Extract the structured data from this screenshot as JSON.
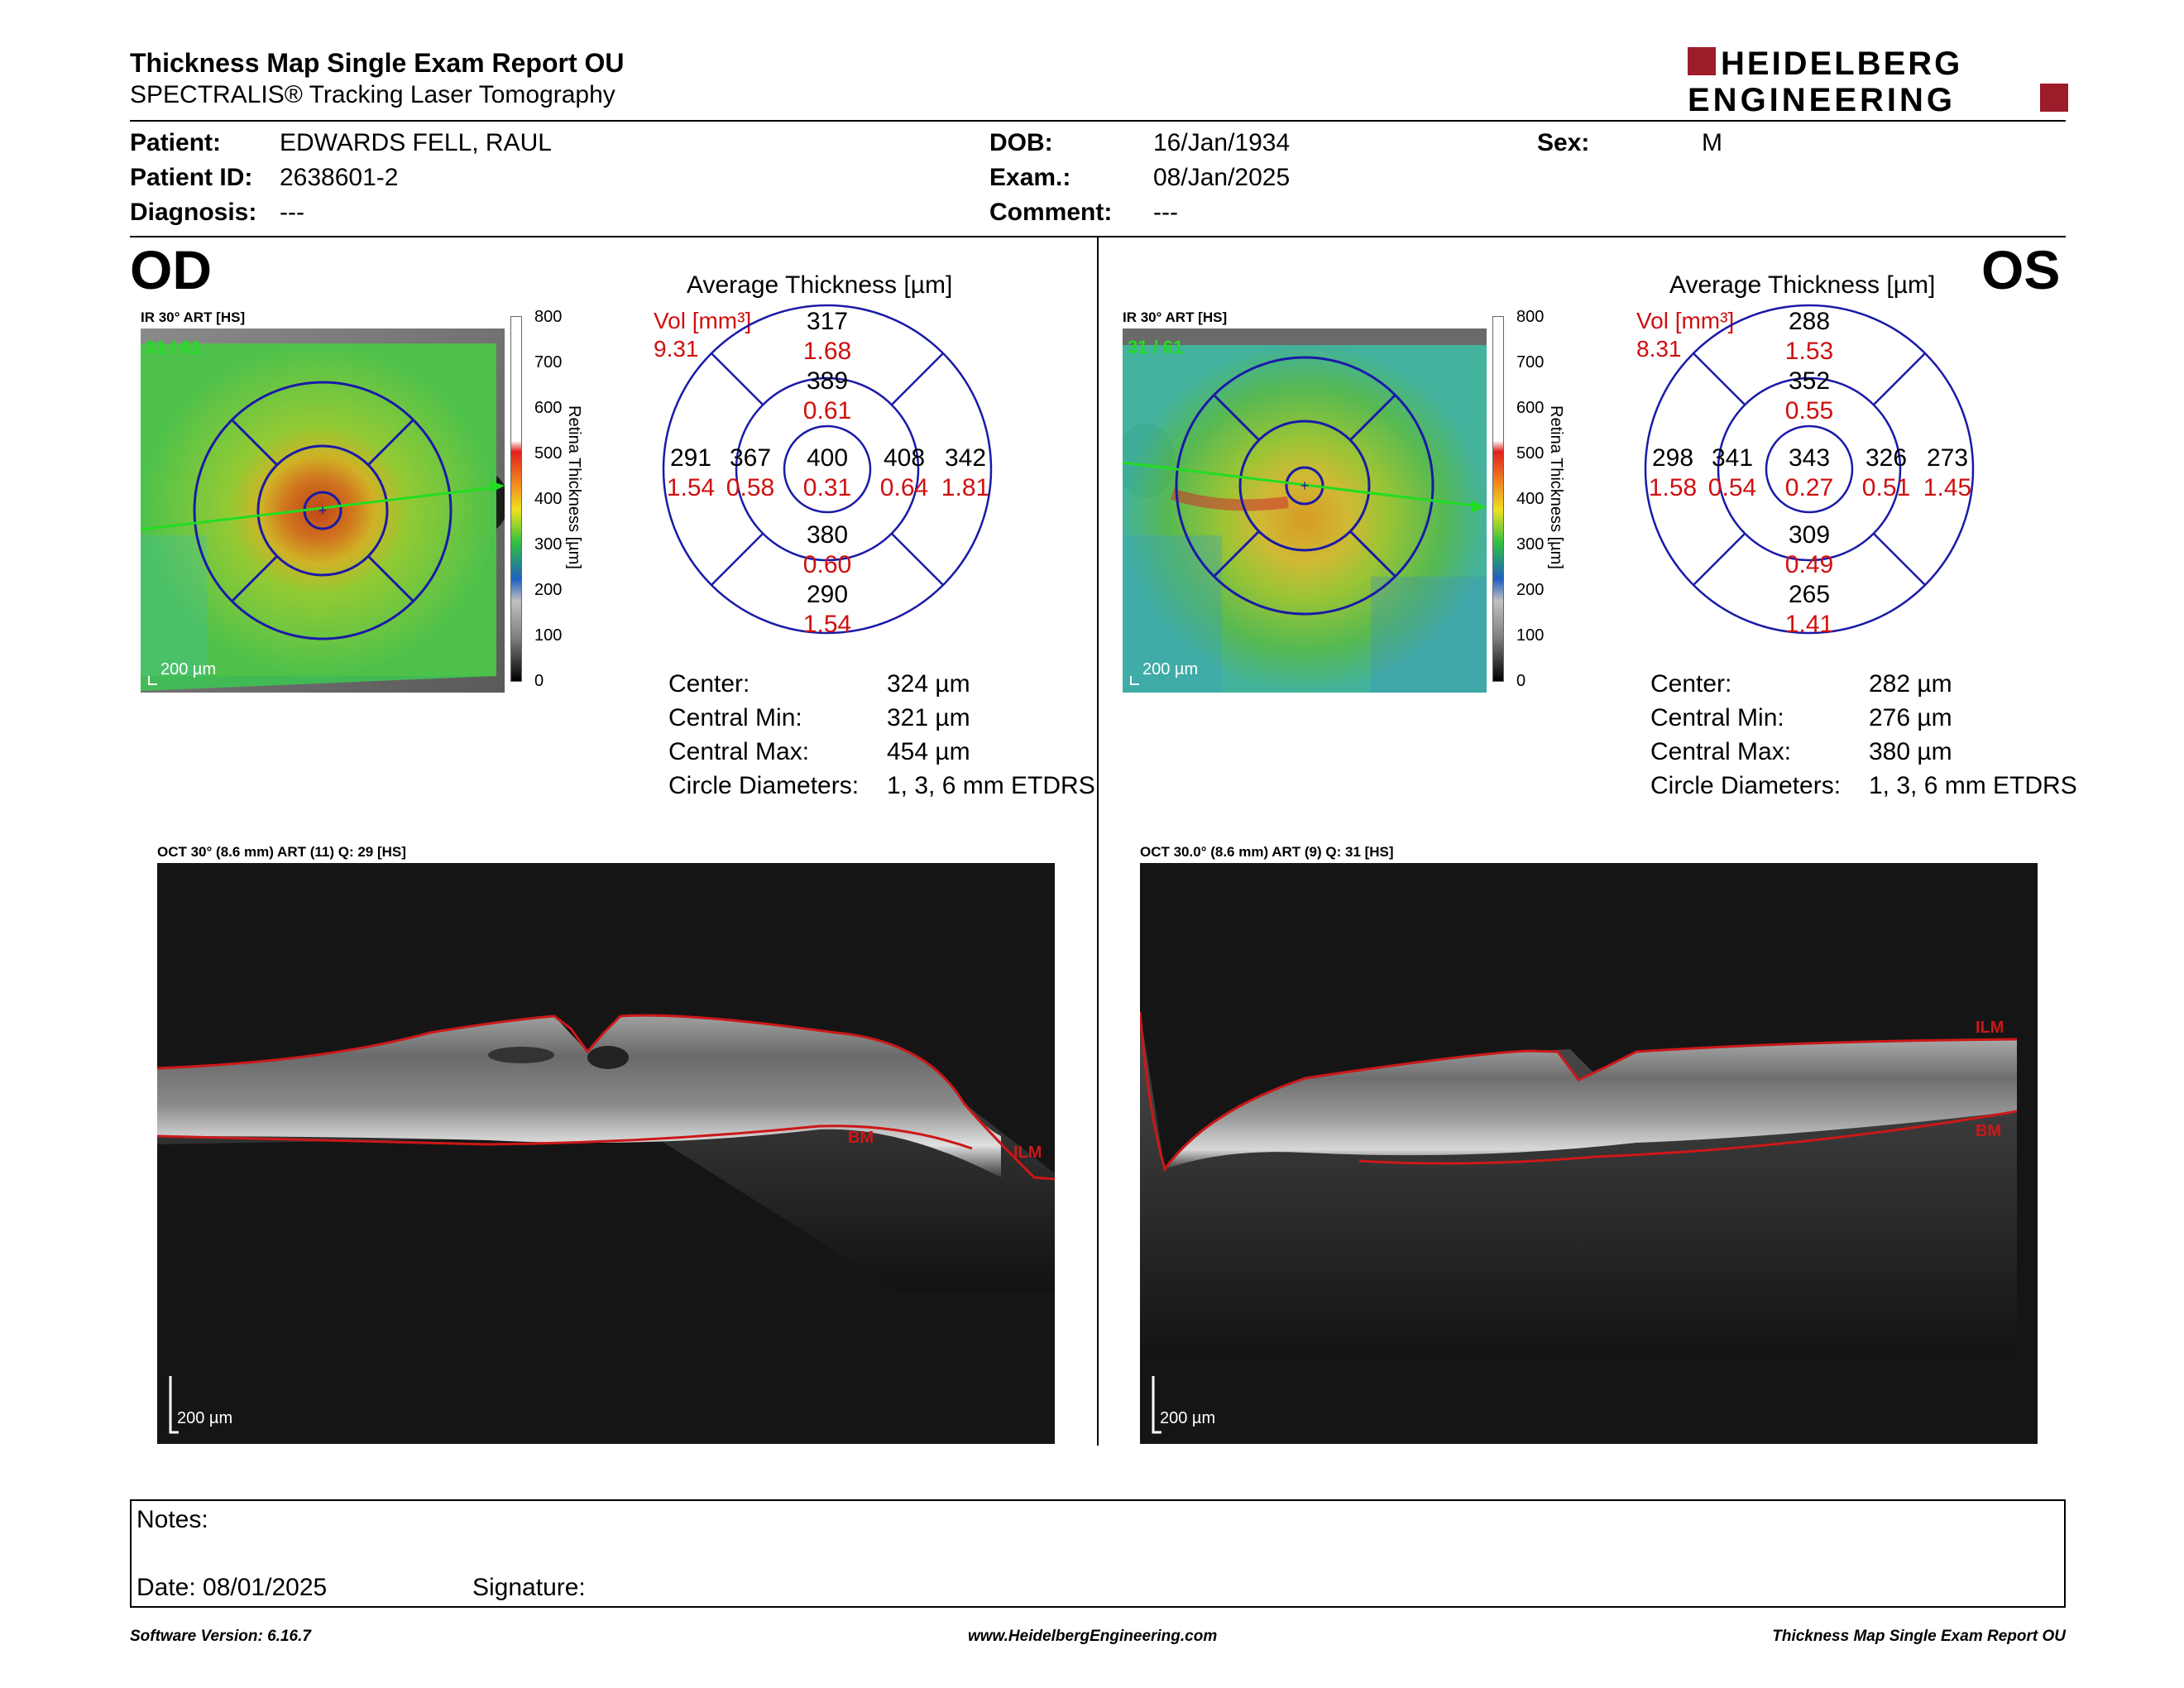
{
  "header": {
    "title": "Thickness Map Single Exam Report OU",
    "subtitle": "SPECTRALIS® Tracking Laser Tomography",
    "logo_line1": "HEIDELBERG",
    "logo_line2": "ENGINEERING",
    "brand_color": "#9c1c2a"
  },
  "patient": {
    "patient_label": "Patient:",
    "patient_value": "EDWARDS FELL, RAUL",
    "id_label": "Patient ID:",
    "id_value": "2638601-2",
    "diagnosis_label": "Diagnosis:",
    "diagnosis_value": "---",
    "dob_label": "DOB:",
    "dob_value": "16/Jan/1934",
    "exam_label": "Exam.:",
    "exam_value": "08/Jan/2025",
    "comment_label": "Comment:",
    "comment_value": "---",
    "sex_label": "Sex:",
    "sex_value": "M"
  },
  "od": {
    "eye_label": "OD",
    "ir_label": "IR 30° ART [HS]",
    "frame_counter": "31 / 61",
    "scale_label": "200 µm",
    "colorbar_ticks": [
      "800",
      "700",
      "600",
      "500",
      "400",
      "300",
      "200",
      "100",
      "0"
    ],
    "colorbar_axis": "Retina Thickness [µm]",
    "avg_title": "Average Thickness [µm]",
    "vol_label": "Vol [mm³]",
    "vol_value": "9.31",
    "sectors": {
      "center": {
        "t": "400",
        "v": "0.31"
      },
      "inner_sup": {
        "t": "389",
        "v": "0.61"
      },
      "inner_inf": {
        "t": "380",
        "v": "0.60"
      },
      "inner_left": {
        "t": "367",
        "v": "0.58"
      },
      "inner_right": {
        "t": "408",
        "v": "0.64"
      },
      "outer_sup": {
        "t": "317",
        "v": "1.68"
      },
      "outer_inf": {
        "t": "290",
        "v": "1.54"
      },
      "outer_left": {
        "t": "291",
        "v": "1.54"
      },
      "outer_right": {
        "t": "342",
        "v": "1.81"
      }
    },
    "stats": [
      {
        "label": "Center:",
        "value": "324 µm"
      },
      {
        "label": "Central Min:",
        "value": "321 µm"
      },
      {
        "label": "Central Max:",
        "value": "454 µm"
      },
      {
        "label": "Circle Diameters:",
        "value": "1, 3, 6 mm ETDRS"
      }
    ],
    "oct_label": "OCT 30° (8.6 mm) ART (11) Q: 29 [HS]",
    "oct_scale": "200 µm",
    "ilm": "ILM",
    "bm": "BM"
  },
  "os": {
    "eye_label": "OS",
    "ir_label": "IR 30° ART [HS]",
    "frame_counter": "31 / 61",
    "scale_label": "200 µm",
    "colorbar_ticks": [
      "800",
      "700",
      "600",
      "500",
      "400",
      "300",
      "200",
      "100",
      "0"
    ],
    "colorbar_axis": "Retina Thickness [µm]",
    "avg_title": "Average Thickness [µm]",
    "vol_label": "Vol [mm³]",
    "vol_value": "8.31",
    "sectors": {
      "center": {
        "t": "343",
        "v": "0.27"
      },
      "inner_sup": {
        "t": "352",
        "v": "0.55"
      },
      "inner_inf": {
        "t": "309",
        "v": "0.49"
      },
      "inner_left": {
        "t": "341",
        "v": "0.54"
      },
      "inner_right": {
        "t": "326",
        "v": "0.51"
      },
      "outer_sup": {
        "t": "288",
        "v": "1.53"
      },
      "outer_inf": {
        "t": "265",
        "v": "1.41"
      },
      "outer_left": {
        "t": "298",
        "v": "1.58"
      },
      "outer_right": {
        "t": "273",
        "v": "1.45"
      }
    },
    "stats": [
      {
        "label": "Center:",
        "value": "282 µm"
      },
      {
        "label": "Central Min:",
        "value": "276 µm"
      },
      {
        "label": "Central Max:",
        "value": "380 µm"
      },
      {
        "label": "Circle Diameters:",
        "value": "1, 3, 6 mm ETDRS"
      }
    ],
    "oct_label": "OCT 30.0° (8.6 mm) ART (9) Q: 31 [HS]",
    "oct_scale": "200 µm",
    "ilm": "ILM",
    "bm": "BM"
  },
  "notes": {
    "notes_label": "Notes:",
    "date_label": "Date: 08/01/2025",
    "signature_label": "Signature:"
  },
  "footer": {
    "software": "Software Version: 6.16.7",
    "website": "www.HeidelbergEngineering.com",
    "report_name": "Thickness Map Single Exam Report OU"
  },
  "colors": {
    "ring": "#1a1aa8",
    "volume_red": "#d01010",
    "scan_line": "#22dd22",
    "segmentation": "#cc1818"
  }
}
